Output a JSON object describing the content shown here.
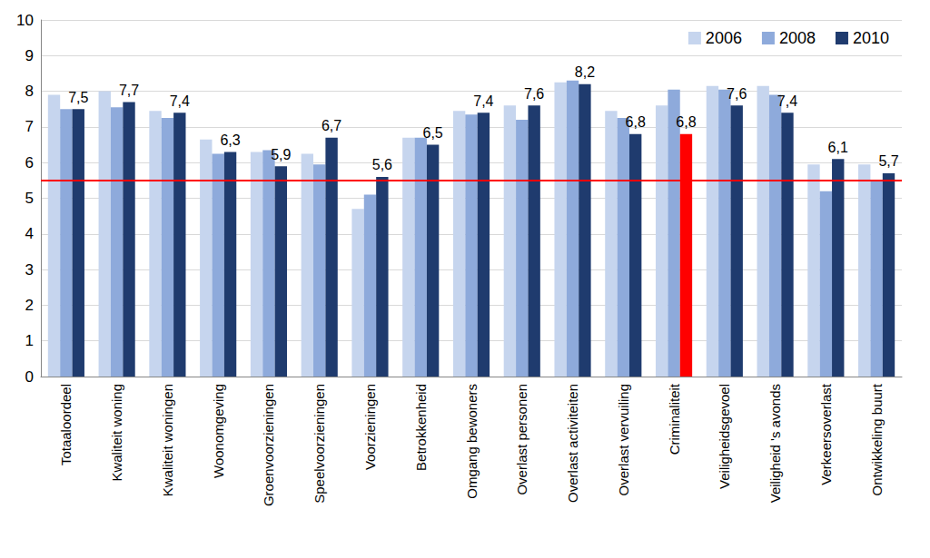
{
  "chart_data": {
    "type": "bar",
    "categories": [
      "Totaaloordeel",
      "Kwaliteit woning",
      "Kwaliteit woningen",
      "Woonomgeving",
      "Groenvoorzieningen",
      "Speelvoorzieningen",
      "Voorzieningen",
      "Betrokkenheid",
      "Omgang bewoners",
      "Overlast personen",
      "Overlast activiteiten",
      "Overlast vervuiling",
      "Criminaliteit",
      "Veiligheidsgevoel",
      "Veiligheid 's avonds",
      "Verkeersoverlast",
      "Ontwikkeling buurt"
    ],
    "series": [
      {
        "name": "2006",
        "color": "#c6d5ee",
        "values": [
          7.9,
          8.0,
          7.45,
          6.65,
          6.3,
          6.25,
          4.7,
          6.7,
          7.45,
          7.6,
          8.25,
          7.45,
          7.6,
          8.15,
          8.15,
          5.95,
          5.95
        ]
      },
      {
        "name": "2008",
        "color": "#8eaadb",
        "values": [
          7.5,
          7.55,
          7.25,
          6.25,
          6.35,
          5.95,
          5.1,
          6.7,
          7.35,
          7.2,
          8.3,
          7.25,
          8.05,
          8.05,
          7.9,
          5.2,
          5.5
        ]
      },
      {
        "name": "2010",
        "color": "#1f3b6e",
        "colors": [
          "#1f3b6e",
          "#1f3b6e",
          "#1f3b6e",
          "#1f3b6e",
          "#1f3b6e",
          "#1f3b6e",
          "#1f3b6e",
          "#1f3b6e",
          "#1f3b6e",
          "#1f3b6e",
          "#1f3b6e",
          "#1f3b6e",
          "#ff0000",
          "#1f3b6e",
          "#1f3b6e",
          "#1f3b6e",
          "#1f3b6e"
        ],
        "data_labels": true,
        "values": [
          7.5,
          7.7,
          7.4,
          6.3,
          5.9,
          6.7,
          5.6,
          6.5,
          7.4,
          7.6,
          8.2,
          6.8,
          6.8,
          7.6,
          7.4,
          6.1,
          5.7
        ],
        "value_labels": [
          "7,5",
          "7,7",
          "7,4",
          "6,3",
          "5,9",
          "6,7",
          "5,6",
          "6,5",
          "7,4",
          "7,6",
          "8,2",
          "6,8",
          "6,8",
          "7,6",
          "7,4",
          "6,1",
          "5,7"
        ]
      }
    ],
    "ylim": [
      0,
      10
    ],
    "yticks": [
      0,
      1,
      2,
      3,
      4,
      5,
      6,
      7,
      8,
      9,
      10
    ],
    "grid": true,
    "legend": "top-right",
    "reference_lines": [
      {
        "value": 5.5,
        "color": "#ff0000"
      }
    ]
  }
}
